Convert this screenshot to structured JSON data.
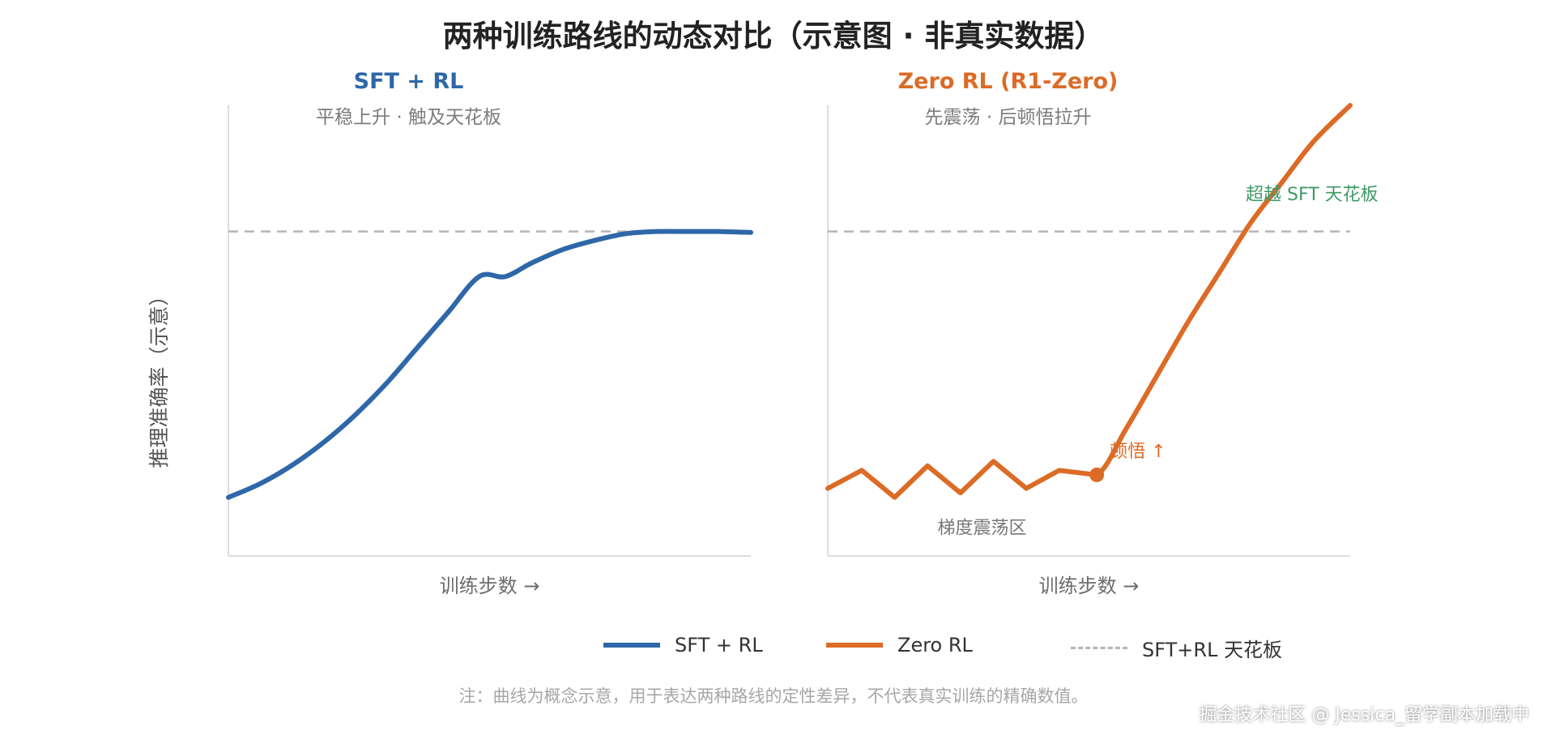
{
  "title": "两种训练路线的动态对比（示意图 · 非真实数据）",
  "ylabel": "推理准确率（示意）",
  "note": "注：曲线为概念示意，用于表达两种路线的定性差异，不代表真实训练的精确数值。",
  "watermark": "掘金技术社区 @ Jessica_留学副本加载中",
  "colors": {
    "sft": "#2f67a8",
    "zero": "#dc6b26",
    "ceiling": "#b5b5b5",
    "annotation_green": "#3f9a68",
    "axis": "#dddddd"
  },
  "legend": [
    {
      "label": "SFT + RL",
      "color": "#2f67a8",
      "style": "solid"
    },
    {
      "label": "Zero RL",
      "color": "#dc6b26",
      "style": "solid"
    },
    {
      "label": "SFT+RL 天花板",
      "color": "#b5b5b5",
      "style": "dashed"
    }
  ],
  "chart_data": [
    {
      "type": "line",
      "title": "SFT + RL",
      "subtitle": "平稳上升 · 触及天花板",
      "xlabel": "训练步数 →",
      "ylabel": "推理准确率（示意）",
      "xlim": [
        0,
        100
      ],
      "ylim": [
        0,
        100
      ],
      "grid": false,
      "ceiling": 72,
      "series": [
        {
          "name": "SFT + RL",
          "color": "#2f67a8",
          "x": [
            0,
            6,
            12,
            18,
            24,
            30,
            36,
            42,
            48,
            53,
            58,
            64,
            70,
            76,
            82,
            88,
            94,
            100
          ],
          "y": [
            13,
            16,
            20,
            25,
            31,
            38,
            46,
            54,
            62,
            62,
            65,
            68,
            70,
            71.5,
            72,
            72,
            72,
            71.8
          ]
        }
      ],
      "annotations": []
    },
    {
      "type": "line",
      "title": "Zero RL (R1-Zero)",
      "subtitle": "先震荡 · 后顿悟拉升",
      "xlabel": "训练步数 →",
      "ylabel": "",
      "xlim": [
        0,
        100
      ],
      "ylim": [
        0,
        100
      ],
      "grid": false,
      "ceiling": 72,
      "series": [
        {
          "name": "Zero RL",
          "color": "#dc6b26",
          "x": [
            0,
            6.5,
            12.8,
            19.1,
            25.4,
            31.7,
            38,
            44.3,
            51.5,
            57,
            63,
            69,
            75,
            81,
            87,
            93,
            100
          ],
          "y": [
            15,
            19,
            13,
            20,
            14,
            21,
            15,
            19,
            18,
            28,
            40,
            52,
            63,
            74,
            83,
            92,
            100
          ]
        }
      ],
      "annotations": [
        {
          "text": "梯度震荡区",
          "x": 21,
          "y": 6
        },
        {
          "text": "顿悟 ↑",
          "x": 54,
          "y": 23
        },
        {
          "text": "超越 SFT 天花板",
          "x": 80,
          "y": 80
        }
      ],
      "highlight_point": {
        "x": 51.5,
        "y": 18
      }
    }
  ]
}
